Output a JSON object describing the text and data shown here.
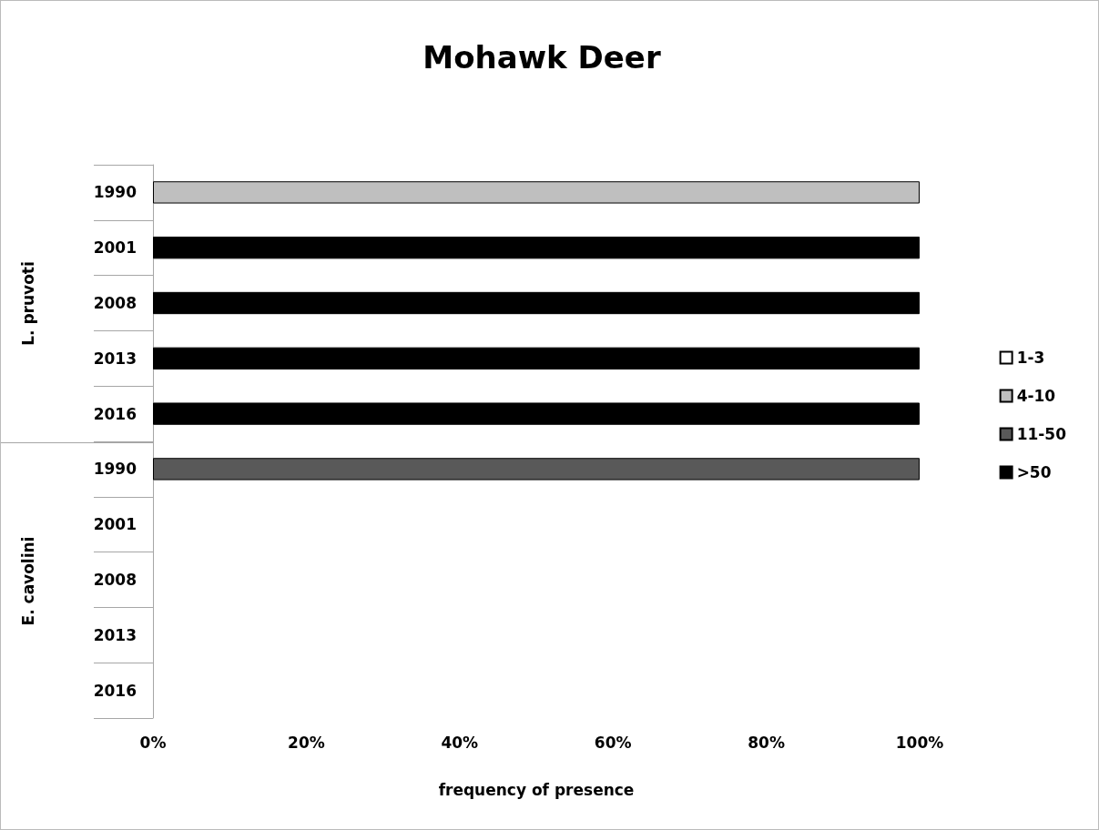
{
  "chart_data": {
    "type": "bar",
    "title": "Mohawk Deer",
    "xlabel": "frequency of presence",
    "orientation": "horizontal",
    "stacked": true,
    "categories": [
      "1990",
      "2001",
      "2008",
      "2013",
      "2016",
      "1990",
      "2001",
      "2008",
      "2013",
      "2016"
    ],
    "annotations": [
      "L. pruvoti",
      "E. cavolini"
    ],
    "series": [
      {
        "name": "1-3",
        "color": "#ffffff",
        "values": [
          null,
          null,
          null,
          null,
          null,
          null,
          null,
          null,
          null,
          null
        ]
      },
      {
        "name": "4-10",
        "color": "#bfbfbf",
        "values": [
          100,
          null,
          null,
          null,
          null,
          null,
          null,
          null,
          null,
          null
        ]
      },
      {
        "name": "11-50",
        "color": "#595959",
        "values": [
          null,
          null,
          null,
          null,
          null,
          100,
          null,
          null,
          null,
          null
        ]
      },
      {
        "name": ">50",
        "color": "#000000",
        "values": [
          null,
          100,
          100,
          100,
          100,
          null,
          null,
          null,
          null,
          null
        ]
      }
    ],
    "xlim": [
      0,
      100
    ],
    "xticks": [
      {
        "value": 0,
        "label": "0%"
      },
      {
        "value": 20,
        "label": "20%"
      },
      {
        "value": 40,
        "label": "40%"
      },
      {
        "value": 60,
        "label": "60%"
      },
      {
        "value": 80,
        "label": "80%"
      },
      {
        "value": 100,
        "label": "100%"
      }
    ],
    "grid": false,
    "legend": "right"
  }
}
